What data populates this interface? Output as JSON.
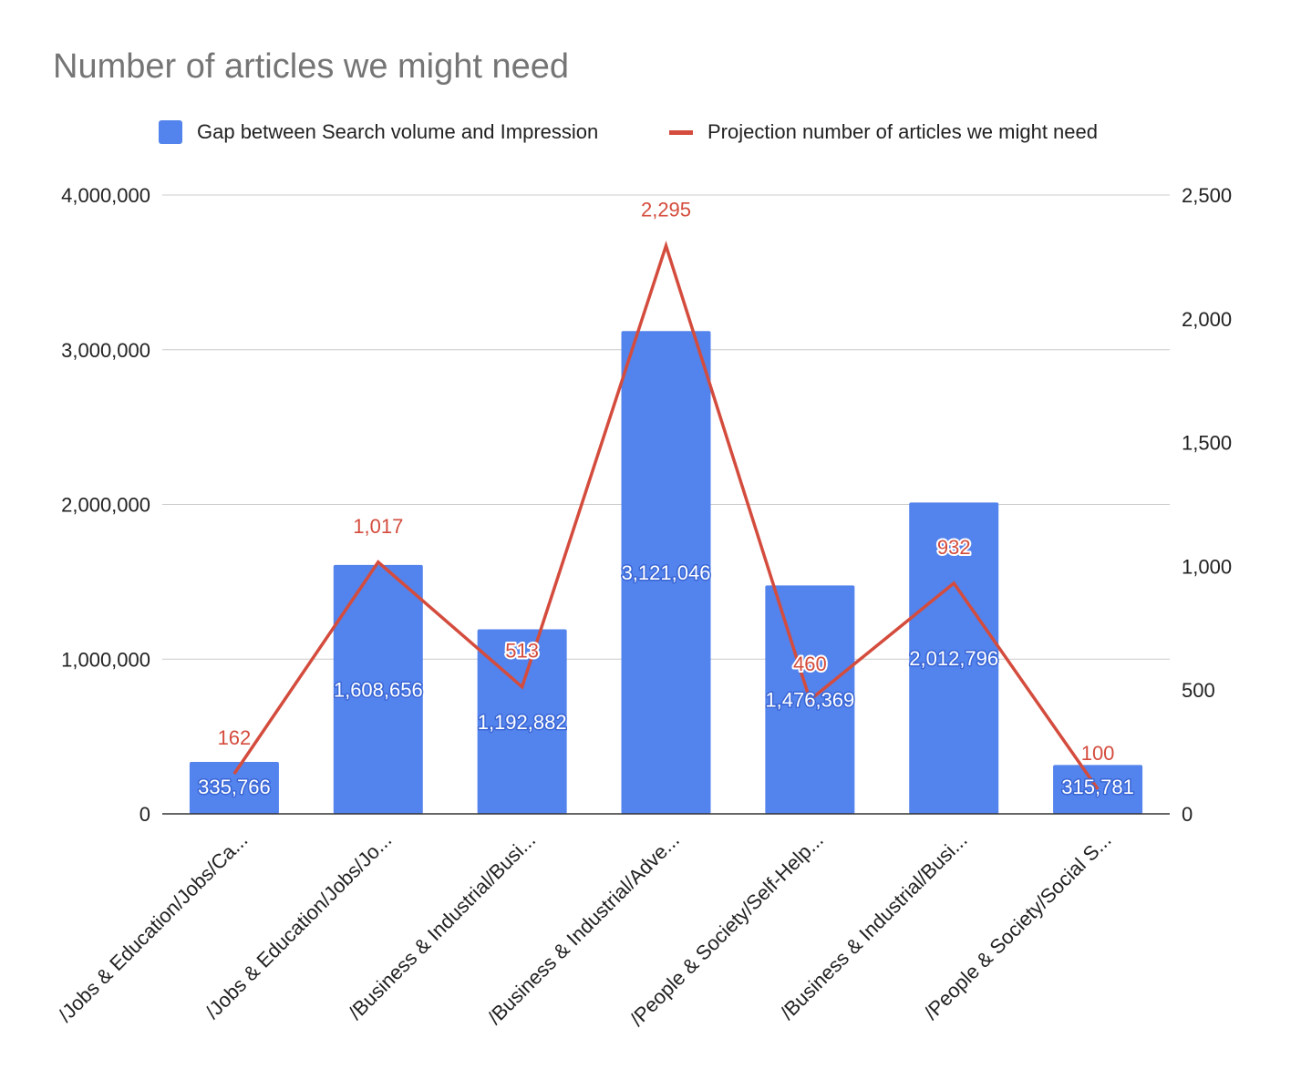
{
  "chart_data": {
    "type": "bar",
    "title": "Number of articles we might need",
    "categories": [
      "/Jobs & Education/Jobs/Ca...",
      "/Jobs & Education/Jobs/Jo...",
      "/Business & Industrial/Busi...",
      "/Business & Industrial/Adve...",
      "/People & Society/Self-Help...",
      "/Business & Industrial/Busi...",
      "/People & Society/Social S..."
    ],
    "series": [
      {
        "name": "Gap between Search volume  and Impression",
        "type": "bar",
        "axis": "left",
        "color": "#5383ec",
        "values": [
          335766,
          1608656,
          1192882,
          3121046,
          1476369,
          2012796,
          315781
        ],
        "labels": [
          "335,766",
          "1,608,656",
          "1,192,882",
          "3,121,046",
          "1,476,369",
          "2,012,796",
          "315,781"
        ]
      },
      {
        "name": "Projection number of articles we might need",
        "type": "line",
        "axis": "right",
        "color": "#d44c3d",
        "values": [
          162,
          1017,
          513,
          2295,
          460,
          932,
          100
        ],
        "labels": [
          "162",
          "1,017",
          "513",
          "2,295",
          "460",
          "932",
          "100"
        ]
      }
    ],
    "y_left": {
      "min": 0,
      "max": 4000000,
      "ticks": [
        0,
        1000000,
        2000000,
        3000000,
        4000000
      ],
      "tick_labels": [
        "0",
        "1,000,000",
        "2,000,000",
        "3,000,000",
        "4,000,000"
      ]
    },
    "y_right": {
      "min": 0,
      "max": 2500,
      "ticks": [
        0,
        500,
        1000,
        1500,
        2000,
        2500
      ],
      "tick_labels": [
        "0",
        "500",
        "1,000",
        "1,500",
        "2,000",
        "2,500"
      ]
    },
    "xlabel": "",
    "ylabel": "",
    "grid": true,
    "legend_position": "top"
  }
}
